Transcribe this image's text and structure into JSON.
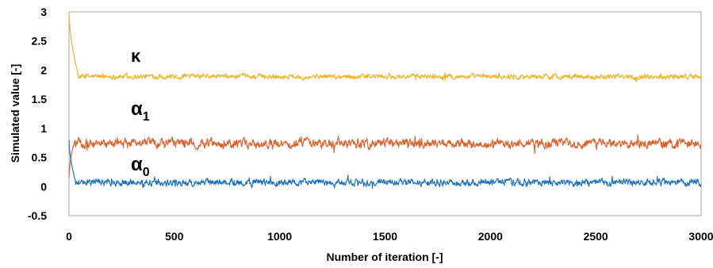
{
  "chart_data": {
    "type": "line",
    "title": "",
    "xlabel": "Number of iteration [-]",
    "ylabel": "Simulated value [-]",
    "xlim": [
      0,
      3000
    ],
    "ylim": [
      -0.5,
      3
    ],
    "xticks": [
      0,
      500,
      1000,
      1500,
      2000,
      2500,
      3000
    ],
    "yticks": [
      -0.5,
      0,
      0.5,
      1,
      1.5,
      2,
      2.5,
      3
    ],
    "grid": false,
    "legend": "none",
    "series": [
      {
        "name": "κ",
        "color": "#f0b428",
        "start": 3.0,
        "start_iterations": 45,
        "burn_in_end_value": 1.9,
        "level": 1.89,
        "amplitude": 0.05,
        "range": [
          1.8,
          1.98
        ]
      },
      {
        "name": "α1",
        "color": "#e0602a",
        "start": 0.15,
        "start_iterations": 20,
        "burn_in_end_value": 0.7,
        "level": 0.74,
        "amplitude": 0.09,
        "range": [
          0.55,
          0.92
        ]
      },
      {
        "name": "α0",
        "color": "#1f74c0",
        "start": 0.8,
        "start_iterations": 30,
        "burn_in_end_value": 0.1,
        "level": 0.07,
        "amplitude": 0.07,
        "range": [
          -0.05,
          0.2
        ]
      }
    ]
  },
  "labels": {
    "kappa": "κ",
    "alpha1_base": "α",
    "alpha1_sub": "1",
    "alpha0_base": "α",
    "alpha0_sub": "0"
  }
}
